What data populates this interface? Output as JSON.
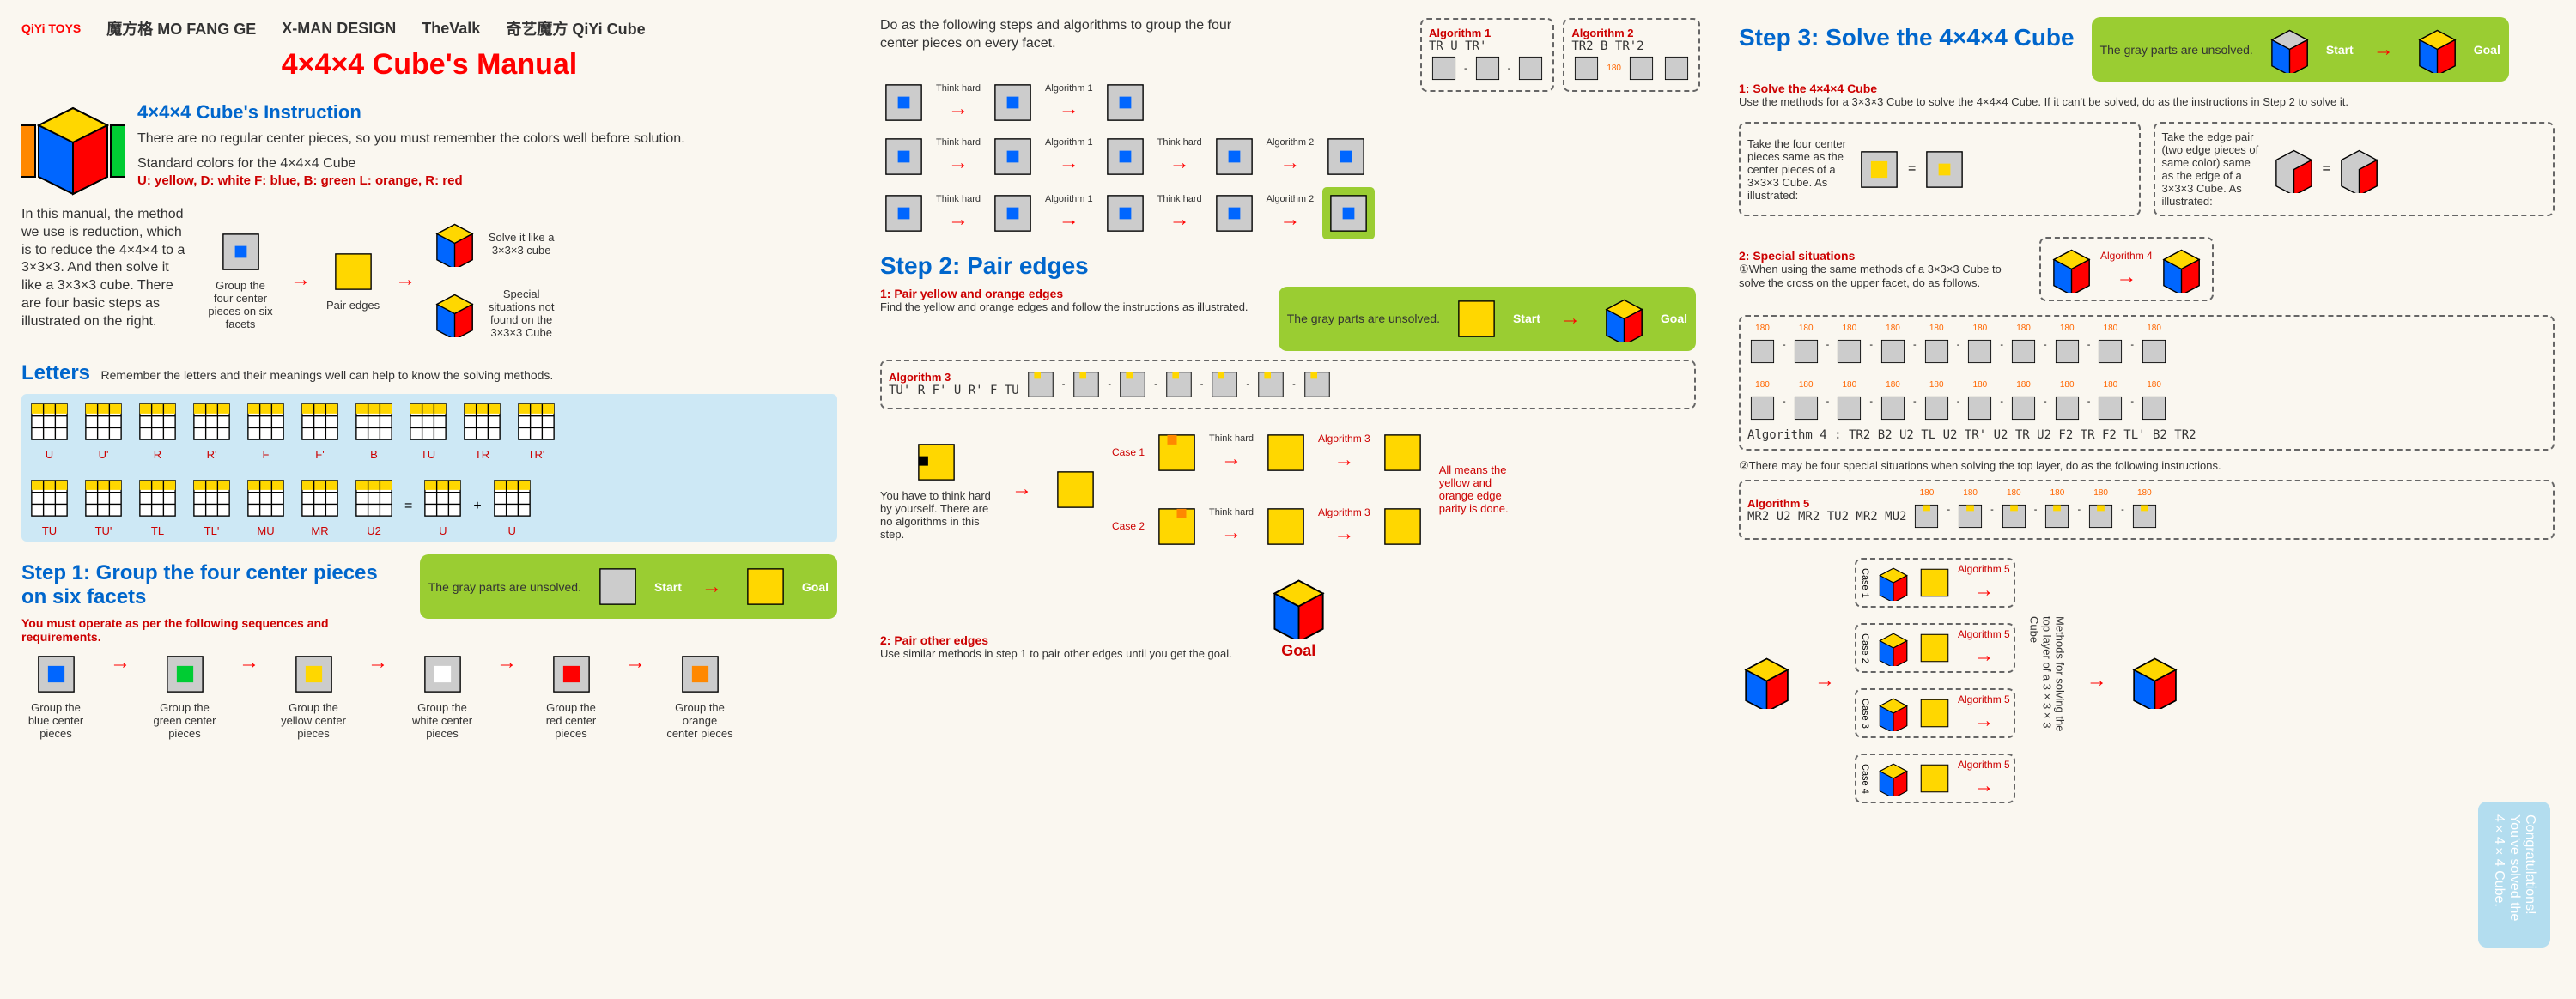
{
  "logos": [
    "QiYi TOYS",
    "魔方格 MO FANG GE",
    "X-MAN DESIGN",
    "TheValk",
    "奇艺魔方 QiYi Cube"
  ],
  "main_title": "4×4×4 Cube's Manual",
  "instruction_title": "4×4×4 Cube's Instruction",
  "instruction_text": "There are no regular center pieces, so you must remember the colors well before solution.",
  "std_colors_title": "Standard colors for the 4×4×4 Cube",
  "std_colors_text": "U: yellow, D: white  F: blue, B: green  L: orange, R: red",
  "intro_text": "In this manual, the method we use is reduction, which is to reduce the 4×4×4 to a 3×3×3. And then solve it like a 3×3×3 cube. There are four basic steps as illustrated on the right.",
  "intro_captions": [
    "Group the four center pieces on six facets",
    "Pair edges",
    "Solve it like a 3×3×3 cube",
    "Special situations not found on the 3×3×3 Cube"
  ],
  "letters_title": "Letters",
  "letters_text": "Remember the letters and their meanings well can help to know the solving methods.",
  "moves": [
    "U",
    "U'",
    "R",
    "R'",
    "F",
    "F'",
    "B",
    "TU",
    "TR",
    "TR'",
    "TU",
    "TU'",
    "TL",
    "TL'",
    "MU",
    "MR",
    "U2",
    "U",
    "U"
  ],
  "step1_title": "Step 1: Group the four center pieces on six facets",
  "step1_text": "You must operate as per the following sequences and requirements.",
  "gray_text": "The gray parts are unsolved.",
  "start_label": "Start",
  "goal_label": "Goal",
  "center_captions": [
    "Group the blue center pieces",
    "Group the green center pieces",
    "Group the yellow center pieces",
    "Group the white center pieces",
    "Group the red center pieces",
    "Group the orange center pieces"
  ],
  "step1_intro": "Do as the following steps and algorithms to group the four center pieces on every facet.",
  "algo1_title": "Algorithm 1",
  "algo1_text": "TR U TR'",
  "algo2_title": "Algorithm 2",
  "algo2_text": "TR2 B TR'2",
  "think_hard": "Think hard",
  "algo_label1": "Algorithm 1",
  "algo_label2": "Algorithm 2",
  "step2_title": "Step 2: Pair edges",
  "step2_sub1": "1: Pair yellow and orange edges",
  "step2_text1": "Find the yellow and orange edges and follow the instructions as illustrated.",
  "algo3_title": "Algorithm 3",
  "algo3_text": "TU' R F' U R' F TU",
  "step2_think_text": "You have to think hard by yourself. There are no algorithms in this step.",
  "case1": "Case 1",
  "case2": "Case 2",
  "parity_text": "All means the yellow and orange edge parity is done.",
  "step2_sub2": "2: Pair other edges",
  "step2_text2": "Use similar methods in step 1 to pair other edges until you get the goal.",
  "step3_title": "Step 3: Solve the 4×4×4 Cube",
  "step3_sub1": "1: Solve the 4×4×4 Cube",
  "step3_text1": "Use the methods for a 3×3×3 Cube to solve the 4×4×4 Cube. If it can't be solved, do as the instructions in Step 2 to solve it.",
  "step3_box1": "Take the four center pieces same as the center pieces of a 3×3×3 Cube. As illustrated:",
  "step3_box2": "Take the edge pair (two edge pieces of same color) same as the edge of a 3×3×3 Cube. As illustrated:",
  "step3_sub2": "2: Special situations",
  "step3_text2a": "①When using the same methods of a 3×3×3 Cube to solve the cross on the upper facet, do as follows.",
  "algo4_label": "Algorithm 4",
  "algo4_text": "Algorithm 4 : TR2 B2 U2 TL U2 TR' U2 TR U2 F2 TR F2 TL' B2 TR2",
  "step3_text2b": "②There may be four special situations when solving the top layer, do as the following instructions.",
  "algo5_title": "Algorithm 5",
  "algo5_text": "MR2 U2 MR2 TU2 MR2 MU2",
  "algo5_label": "Algorithm 5",
  "cases": [
    "Case 1",
    "Case 2",
    "Case 3",
    "Case 4"
  ],
  "side_text": "Methods for solving the top layer of a 3×3×3 Cube",
  "congrats": "Congratulations! You've solved the 4×4×4 Cube.",
  "deg180": "180",
  "equals": "=",
  "plus": "+",
  "colors": {
    "yellow": "#ffd700",
    "white": "#ffffff",
    "blue": "#0066ff",
    "green": "#00cc33",
    "orange": "#ff8800",
    "red": "#ff0000",
    "gray": "#cccccc",
    "dark": "#888888"
  }
}
